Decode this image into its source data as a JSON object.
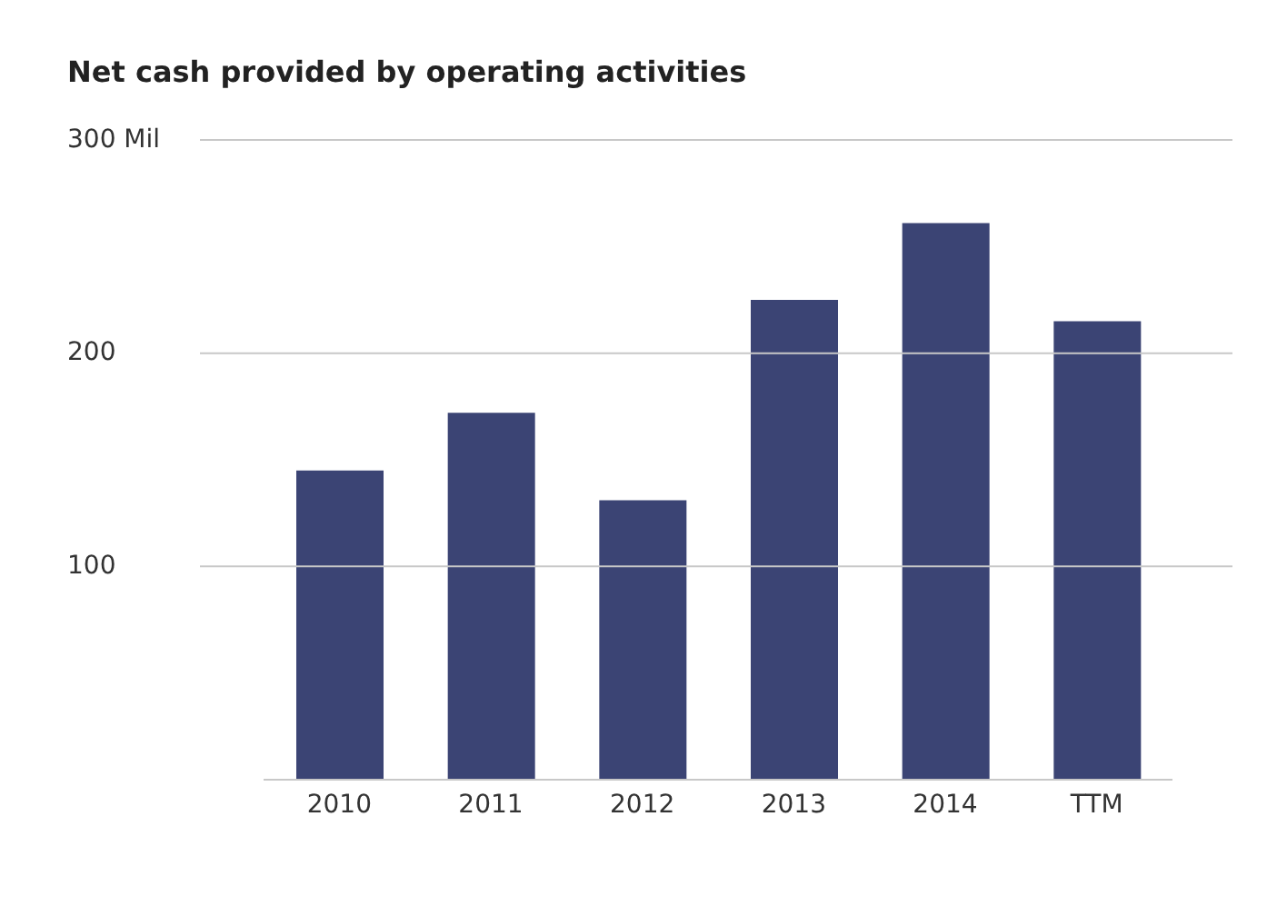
{
  "chart_data": {
    "type": "bar",
    "title": "Net cash provided by operating activities",
    "categories": [
      "2010",
      "2011",
      "2012",
      "2013",
      "2014",
      "TTM"
    ],
    "values": [
      145,
      172,
      131,
      225,
      261,
      215
    ],
    "color": "#3b4474",
    "ylim": [
      0,
      300
    ],
    "yticks": [
      100,
      200,
      {
        "value": 300,
        "label": "300 Mil"
      }
    ],
    "grid": "y"
  }
}
